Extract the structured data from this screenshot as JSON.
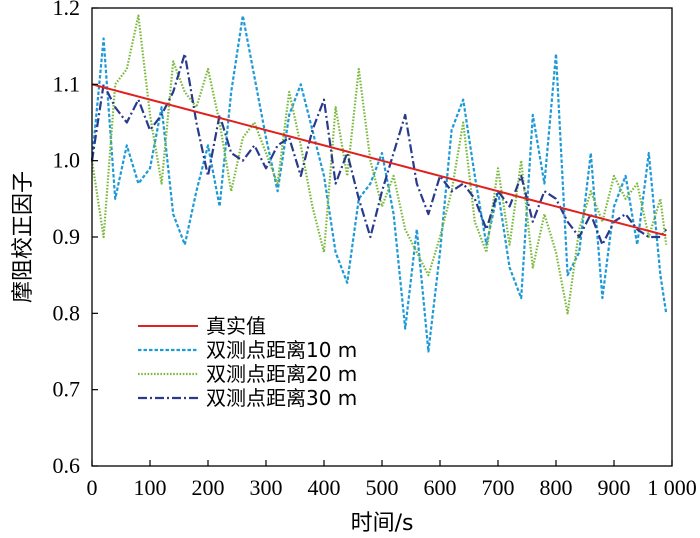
{
  "chart_data": {
    "type": "line",
    "title": "",
    "xlabel": "时间/s",
    "ylabel": "摩阻校正因子",
    "xlim": [
      0,
      1000
    ],
    "ylim": [
      0.6,
      1.2
    ],
    "xticks": [
      0,
      100,
      200,
      300,
      400,
      500,
      600,
      700,
      800,
      900,
      1000
    ],
    "xtick_labels": [
      "0",
      "100",
      "200",
      "300",
      "400",
      "500",
      "600",
      "700",
      "800",
      "900",
      "1 000"
    ],
    "yticks": [
      0.6,
      0.7,
      0.8,
      0.9,
      1.0,
      1.1,
      1.2
    ],
    "ytick_labels": [
      "0.6",
      "0.7",
      "0.8",
      "0.9",
      "1.0",
      "1.1",
      "1.2"
    ],
    "grid": false,
    "legend_position": "lower-left",
    "x": [
      0,
      20,
      40,
      60,
      80,
      100,
      120,
      140,
      160,
      180,
      200,
      220,
      240,
      260,
      280,
      300,
      320,
      340,
      360,
      380,
      400,
      420,
      440,
      460,
      480,
      500,
      520,
      540,
      560,
      580,
      600,
      620,
      640,
      660,
      680,
      700,
      720,
      740,
      760,
      780,
      800,
      820,
      840,
      860,
      880,
      900,
      920,
      940,
      960,
      980,
      990
    ],
    "series": [
      {
        "name": "真实值",
        "color": "#e0211d",
        "dash": "solid",
        "values": [
          1.1,
          1.096,
          1.092,
          1.088,
          1.084,
          1.08,
          1.076,
          1.072,
          1.068,
          1.064,
          1.06,
          1.056,
          1.052,
          1.048,
          1.044,
          1.04,
          1.036,
          1.032,
          1.028,
          1.024,
          1.02,
          1.016,
          1.012,
          1.008,
          1.004,
          1.0,
          0.996,
          0.992,
          0.988,
          0.984,
          0.98,
          0.976,
          0.972,
          0.968,
          0.964,
          0.96,
          0.956,
          0.952,
          0.948,
          0.944,
          0.94,
          0.936,
          0.932,
          0.928,
          0.924,
          0.92,
          0.916,
          0.912,
          0.908,
          0.904,
          0.902
        ]
      },
      {
        "name": "双测点距离10 m",
        "color": "#1e9ad6",
        "dash": "dashed",
        "values": [
          1.0,
          1.16,
          0.95,
          1.02,
          0.97,
          0.99,
          1.07,
          0.93,
          0.89,
          0.96,
          1.02,
          0.94,
          1.09,
          1.19,
          1.11,
          1.03,
          0.96,
          1.06,
          1.1,
          1.04,
          0.98,
          0.88,
          0.84,
          0.95,
          0.97,
          1.01,
          0.93,
          0.78,
          0.91,
          0.75,
          0.88,
          1.04,
          1.08,
          0.98,
          0.89,
          0.96,
          0.86,
          0.82,
          1.06,
          0.97,
          1.14,
          0.85,
          0.88,
          1.01,
          0.82,
          0.94,
          0.98,
          0.89,
          1.01,
          0.85,
          0.8
        ]
      },
      {
        "name": "双测点距离20 m",
        "color": "#7ab93c",
        "dash": "dotted",
        "values": [
          1.0,
          0.9,
          1.1,
          1.12,
          1.19,
          1.06,
          0.97,
          1.13,
          1.09,
          1.07,
          1.12,
          1.05,
          0.96,
          1.03,
          1.05,
          1.01,
          0.97,
          1.09,
          1.02,
          0.94,
          0.88,
          1.07,
          0.98,
          1.12,
          1.0,
          0.94,
          0.98,
          0.91,
          0.88,
          0.85,
          0.9,
          0.96,
          1.05,
          0.92,
          0.88,
          0.99,
          0.89,
          1.0,
          0.86,
          0.93,
          0.88,
          0.8,
          0.91,
          0.96,
          0.92,
          0.98,
          0.95,
          0.97,
          0.9,
          0.95,
          0.89
        ]
      },
      {
        "name": "双测点距离30 m",
        "color": "#283a8c",
        "dash": "dashdot",
        "values": [
          1.0,
          1.1,
          1.07,
          1.05,
          1.08,
          1.04,
          1.06,
          1.09,
          1.14,
          1.05,
          0.98,
          1.06,
          1.01,
          1.0,
          1.02,
          0.99,
          1.02,
          1.03,
          0.98,
          1.04,
          1.08,
          0.97,
          1.01,
          0.95,
          0.9,
          0.96,
          1.01,
          1.06,
          0.97,
          0.93,
          0.98,
          0.96,
          0.97,
          0.95,
          0.91,
          0.96,
          0.94,
          0.98,
          0.92,
          0.96,
          0.95,
          0.92,
          0.9,
          0.93,
          0.89,
          0.92,
          0.93,
          0.91,
          0.9,
          0.9,
          0.91
        ]
      }
    ]
  }
}
